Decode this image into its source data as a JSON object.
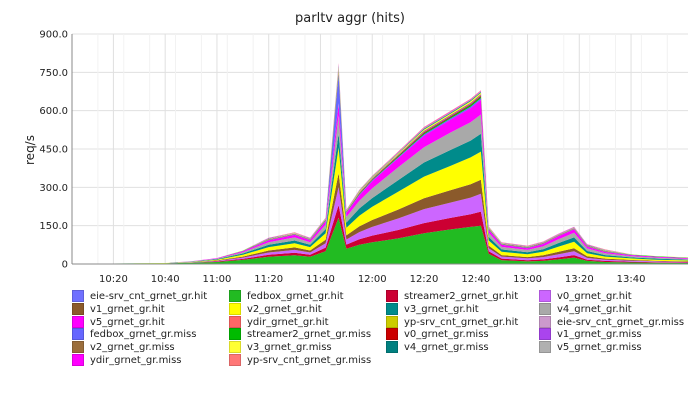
{
  "chart_data": {
    "type": "area",
    "stacked": true,
    "title": "parltv aggr (hits)",
    "ylabel": "req/s",
    "xlabel": "",
    "ylim": [
      0,
      900
    ],
    "yticks": [
      "0",
      "150.0",
      "300.0",
      "450.0",
      "600.0",
      "750.0",
      "900.0"
    ],
    "ytick_values": [
      0,
      150,
      300,
      450,
      600,
      750,
      900
    ],
    "xlim": [
      "10:04",
      "14:02"
    ],
    "xticks": [
      "10:20",
      "10:40",
      "11:00",
      "11:20",
      "11:40",
      "12:00",
      "12:20",
      "12:40",
      "13:00",
      "13:20",
      "13:40"
    ],
    "grid": true,
    "legend_position": "bottom",
    "x": [
      "10:04",
      "10:20",
      "10:40",
      "10:50",
      "11:00",
      "11:10",
      "11:20",
      "11:30",
      "11:36",
      "11:42",
      "11:47",
      "11:50",
      "11:55",
      "12:00",
      "12:10",
      "12:20",
      "12:30",
      "12:38",
      "12:42",
      "12:45",
      "12:50",
      "13:00",
      "13:06",
      "13:12",
      "13:18",
      "13:23",
      "13:30",
      "13:40",
      "13:50",
      "14:02"
    ],
    "series": [
      {
        "name": "eie-srv_cnt_grnet_gr.hit",
        "color": "#7070ff",
        "values": [
          0,
          0,
          0,
          0,
          0,
          0,
          0,
          0,
          0,
          0,
          1,
          0,
          0,
          0,
          0,
          0,
          0,
          0,
          0,
          0,
          0,
          0,
          0,
          0,
          0,
          0,
          0,
          0,
          0,
          0
        ]
      },
      {
        "name": "fedbox_grnet_gr.hit",
        "color": "#22bb22",
        "values": [
          1,
          2,
          3,
          5,
          8,
          16,
          28,
          34,
          28,
          50,
          180,
          60,
          75,
          85,
          100,
          120,
          135,
          145,
          150,
          40,
          15,
          10,
          12,
          18,
          25,
          12,
          8,
          6,
          5,
          4
        ]
      },
      {
        "name": "streamer2_grnet_gr.hit",
        "color": "#cc0033",
        "values": [
          0,
          0,
          0,
          0,
          2,
          4,
          8,
          10,
          8,
          14,
          50,
          16,
          22,
          26,
          33,
          40,
          45,
          50,
          55,
          10,
          6,
          5,
          6,
          8,
          10,
          5,
          4,
          3,
          2,
          2
        ]
      },
      {
        "name": "v0_grnet_gr.hit",
        "color": "#cc66ff",
        "values": [
          0,
          0,
          0,
          1,
          2,
          5,
          9,
          11,
          9,
          17,
          70,
          20,
          28,
          34,
          45,
          55,
          60,
          65,
          70,
          12,
          8,
          7,
          9,
          12,
          15,
          7,
          5,
          4,
          3,
          2
        ]
      },
      {
        "name": "v1_grnet_gr.hit",
        "color": "#8b5a2b",
        "values": [
          0,
          0,
          0,
          1,
          2,
          4,
          8,
          10,
          8,
          14,
          55,
          16,
          22,
          27,
          35,
          42,
          48,
          52,
          55,
          10,
          6,
          5,
          7,
          10,
          12,
          6,
          4,
          3,
          2,
          2
        ]
      },
      {
        "name": "v2_grnet_gr.hit",
        "color": "#ffff00",
        "values": [
          0,
          0,
          1,
          1,
          3,
          7,
          13,
          16,
          13,
          25,
          100,
          30,
          42,
          52,
          70,
          85,
          95,
          105,
          110,
          20,
          13,
          11,
          14,
          20,
          25,
          12,
          8,
          6,
          5,
          4
        ]
      },
      {
        "name": "v3_grnet_gr.hit",
        "color": "#008b8b",
        "values": [
          0,
          0,
          0,
          1,
          2,
          5,
          9,
          11,
          9,
          16,
          55,
          20,
          28,
          34,
          45,
          55,
          62,
          66,
          70,
          14,
          9,
          8,
          10,
          14,
          17,
          9,
          6,
          4,
          4,
          3
        ]
      },
      {
        "name": "v4_grnet_gr.hit",
        "color": "#a9a9a9",
        "values": [
          0,
          0,
          0,
          1,
          2,
          5,
          10,
          12,
          10,
          18,
          70,
          22,
          30,
          38,
          50,
          60,
          68,
          72,
          75,
          16,
          10,
          9,
          11,
          15,
          18,
          10,
          7,
          5,
          4,
          3
        ]
      },
      {
        "name": "v5_grnet_gr.hit",
        "color": "#ff00ff",
        "values": [
          0,
          0,
          0,
          1,
          2,
          4,
          8,
          10,
          8,
          14,
          45,
          16,
          22,
          28,
          36,
          45,
          50,
          55,
          58,
          12,
          8,
          7,
          9,
          12,
          14,
          7,
          5,
          4,
          3,
          3
        ]
      },
      {
        "name": "ydir_grnet_gr.hit",
        "color": "#ff6666",
        "values": [
          0,
          0,
          0,
          0,
          0,
          0,
          0,
          0,
          0,
          0,
          1,
          0,
          0,
          0,
          0,
          0,
          0,
          0,
          0,
          0,
          0,
          0,
          0,
          0,
          0,
          0,
          0,
          0,
          0,
          0
        ]
      },
      {
        "name": "yp-srv_cnt_grnet_gr.hit",
        "color": "#cccc00",
        "values": [
          0,
          0,
          0,
          0,
          0,
          0,
          0,
          0,
          0,
          0,
          1,
          0,
          0,
          0,
          0,
          0,
          0,
          0,
          0,
          0,
          0,
          0,
          0,
          0,
          0,
          0,
          0,
          0,
          0,
          0
        ]
      },
      {
        "name": "eie-srv_cnt_grnet_gr.miss",
        "color": "#cc99cc",
        "values": [
          0,
          0,
          0,
          0,
          0,
          0,
          0,
          0,
          0,
          0,
          1,
          0,
          0,
          0,
          0,
          0,
          0,
          0,
          0,
          0,
          0,
          0,
          0,
          0,
          0,
          0,
          0,
          0,
          0,
          0
        ]
      },
      {
        "name": "fedbox_grnet_gr.miss",
        "color": "#6666ff",
        "values": [
          0,
          0,
          0,
          0,
          0,
          1,
          1,
          1,
          1,
          2,
          110,
          2,
          3,
          3,
          4,
          5,
          5,
          6,
          6,
          2,
          1,
          1,
          1,
          1,
          1,
          1,
          1,
          1,
          1,
          1
        ]
      },
      {
        "name": "streamer2_grnet_gr.miss",
        "color": "#00bb00",
        "values": [
          0,
          0,
          0,
          0,
          0,
          1,
          1,
          1,
          1,
          2,
          8,
          2,
          3,
          3,
          4,
          5,
          5,
          6,
          6,
          2,
          1,
          1,
          1,
          1,
          1,
          1,
          1,
          1,
          1,
          1
        ]
      },
      {
        "name": "v0_grnet_gr.miss",
        "color": "#cc0000",
        "values": [
          0,
          0,
          0,
          0,
          0,
          0,
          1,
          1,
          1,
          1,
          5,
          1,
          2,
          2,
          2,
          3,
          3,
          3,
          3,
          1,
          1,
          1,
          1,
          1,
          1,
          1,
          1,
          0,
          0,
          0
        ]
      },
      {
        "name": "v1_grnet_gr.miss",
        "color": "#aa44ee",
        "values": [
          0,
          0,
          0,
          0,
          0,
          0,
          1,
          1,
          1,
          1,
          5,
          1,
          2,
          2,
          2,
          3,
          3,
          3,
          3,
          1,
          1,
          1,
          1,
          1,
          1,
          1,
          1,
          0,
          0,
          0
        ]
      },
      {
        "name": "v2_grnet_gr.miss",
        "color": "#9b6e3c",
        "values": [
          0,
          0,
          0,
          0,
          0,
          0,
          1,
          1,
          1,
          1,
          5,
          1,
          2,
          2,
          2,
          3,
          3,
          3,
          3,
          1,
          1,
          1,
          1,
          1,
          1,
          1,
          1,
          0,
          0,
          0
        ]
      },
      {
        "name": "v3_grnet_gr.miss",
        "color": "#ffff33",
        "values": [
          0,
          0,
          0,
          0,
          0,
          1,
          1,
          1,
          1,
          2,
          8,
          2,
          3,
          3,
          4,
          5,
          5,
          6,
          6,
          2,
          1,
          1,
          1,
          1,
          1,
          1,
          1,
          1,
          1,
          1
        ]
      },
      {
        "name": "v4_grnet_gr.miss",
        "color": "#008080",
        "values": [
          0,
          0,
          0,
          0,
          0,
          0,
          1,
          1,
          1,
          1,
          5,
          1,
          2,
          2,
          2,
          3,
          3,
          3,
          3,
          1,
          1,
          1,
          1,
          1,
          1,
          1,
          1,
          0,
          0,
          0
        ]
      },
      {
        "name": "v5_grnet_gr.miss",
        "color": "#b0b0b0",
        "values": [
          0,
          0,
          0,
          0,
          0,
          0,
          1,
          1,
          1,
          1,
          5,
          1,
          2,
          2,
          2,
          3,
          3,
          3,
          3,
          1,
          1,
          1,
          1,
          1,
          1,
          1,
          1,
          0,
          0,
          0
        ]
      },
      {
        "name": "ydir_grnet_gr.miss",
        "color": "#ff00ff",
        "values": [
          0,
          0,
          0,
          0,
          0,
          0,
          1,
          1,
          1,
          1,
          3,
          1,
          1,
          1,
          2,
          2,
          2,
          2,
          2,
          1,
          1,
          1,
          1,
          1,
          1,
          1,
          1,
          0,
          0,
          0
        ]
      },
      {
        "name": "yp-srv_cnt_grnet_gr.miss",
        "color": "#ff7777",
        "values": [
          0,
          0,
          0,
          0,
          0,
          0,
          1,
          1,
          1,
          1,
          3,
          1,
          1,
          1,
          2,
          2,
          2,
          2,
          2,
          1,
          1,
          1,
          1,
          1,
          1,
          1,
          1,
          0,
          0,
          0
        ]
      }
    ],
    "legend_order": [
      "eie-srv_cnt_grnet_gr.hit",
      "fedbox_grnet_gr.hit",
      "streamer2_grnet_gr.hit",
      "v0_grnet_gr.hit",
      "v1_grnet_gr.hit",
      "v2_grnet_gr.hit",
      "v3_grnet_gr.hit",
      "v4_grnet_gr.hit",
      "v5_grnet_gr.hit",
      "ydir_grnet_gr.hit",
      "yp-srv_cnt_grnet_gr.hit",
      "eie-srv_cnt_grnet_gr.miss",
      "fedbox_grnet_gr.miss",
      "streamer2_grnet_gr.miss",
      "v0_grnet_gr.miss",
      "v1_grnet_gr.miss",
      "v2_grnet_gr.miss",
      "v3_grnet_gr.miss",
      "v4_grnet_gr.miss",
      "v5_grnet_gr.miss",
      "ydir_grnet_gr.miss",
      "yp-srv_cnt_grnet_gr.miss"
    ]
  }
}
